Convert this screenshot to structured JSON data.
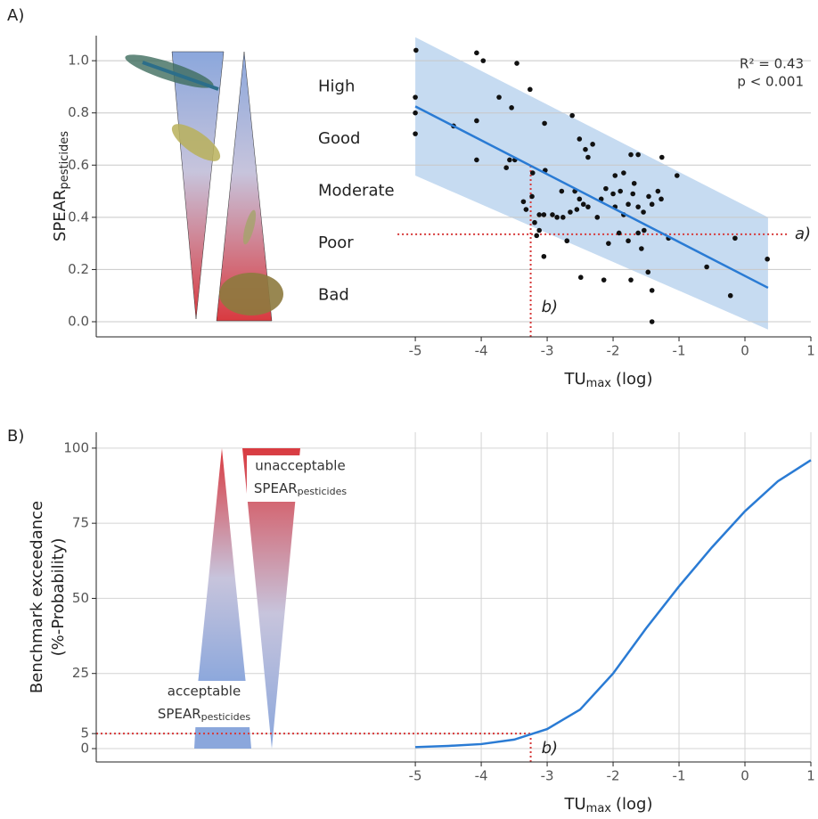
{
  "chart_data": [
    {
      "type": "scatter",
      "panel_label": "A)",
      "y_label": [
        "SPEAR",
        "pesticides"
      ],
      "x_label": [
        "TU",
        "max",
        "(log)"
      ],
      "xlim": [
        -9.84,
        1
      ],
      "ylim": [
        -0.058,
        1.096
      ],
      "xticks": [
        -5,
        -4,
        -3,
        -2,
        -1,
        0,
        1
      ],
      "yticks": [
        {
          "value": 0,
          "label": "0.0"
        },
        {
          "value": 0.2,
          "label": "0.2"
        },
        {
          "value": 0.4,
          "label": "0.4"
        },
        {
          "value": 0.6,
          "label": "0.6"
        },
        {
          "value": 0.8,
          "label": "0.8"
        },
        {
          "value": 1,
          "label": "1.0"
        }
      ],
      "grid": true,
      "color": "#111111",
      "quality_classes": [
        "High",
        "Good",
        "Moderate",
        "Poor",
        "Bad"
      ],
      "stats": [
        "R² = 0.43",
        "p < 0.001"
      ],
      "x": [
        -4.99,
        -5,
        -5,
        -5,
        -4.07,
        -3.97,
        -3.46,
        -3.26,
        -4.42,
        -4.07,
        -4.07,
        -3.73,
        -3.54,
        -3.62,
        -3.57,
        -3.49,
        -3.22,
        -3.04,
        -2.62,
        -2.51,
        -2.42,
        -2.31,
        -2.38,
        -3.03,
        -3.36,
        -3.23,
        -3.32,
        -3.19,
        -3.12,
        -3.05,
        -2.92,
        -2.85,
        -2.76,
        -2.65,
        -2.55,
        -2.78,
        -2.58,
        -2.51,
        -2.45,
        -2.38,
        -2.24,
        -2.11,
        -2.0,
        -1.89,
        -2.18,
        -1.97,
        -1.84,
        -1.77,
        -1.7,
        -1.68,
        -1.62,
        -1.54,
        -1.46,
        -1.41,
        -1.32,
        -1.27,
        -1.73,
        -1.62,
        -1.26,
        -1.03,
        -1.84,
        -1.97,
        -3.12,
        -3.16,
        -2.7,
        -3.05,
        -2.49,
        -2.07,
        -1.91,
        -1.77,
        -1.62,
        -1.57,
        -1.73,
        -1.47,
        -1.41,
        -1.53,
        -1.16,
        -2.14,
        -1.41,
        -0.58,
        -0.15,
        -0.22,
        0.34
      ],
      "values": [
        1.04,
        0.86,
        0.8,
        0.72,
        1.03,
        1.0,
        0.99,
        0.89,
        0.75,
        0.77,
        0.62,
        0.86,
        0.82,
        0.59,
        0.62,
        0.62,
        0.57,
        0.76,
        0.79,
        0.7,
        0.66,
        0.68,
        0.63,
        0.58,
        0.46,
        0.48,
        0.43,
        0.38,
        0.41,
        0.41,
        0.41,
        0.4,
        0.4,
        0.42,
        0.43,
        0.5,
        0.5,
        0.47,
        0.45,
        0.44,
        0.4,
        0.51,
        0.49,
        0.5,
        0.47,
        0.44,
        0.41,
        0.45,
        0.49,
        0.53,
        0.44,
        0.42,
        0.48,
        0.45,
        0.5,
        0.47,
        0.64,
        0.64,
        0.63,
        0.56,
        0.57,
        0.56,
        0.35,
        0.33,
        0.31,
        0.25,
        0.17,
        0.3,
        0.34,
        0.31,
        0.34,
        0.28,
        0.16,
        0.19,
        0.12,
        0.35,
        0.32,
        0.16,
        0.0,
        0.21,
        0.32,
        0.1,
        0.24
      ],
      "fit": {
        "x": [
          -5,
          0.35
        ],
        "values": [
          0.825,
          0.13
        ],
        "color": "#2a7bd4"
      },
      "band": {
        "x": [
          -5,
          0.35
        ],
        "upper": [
          1.09,
          0.4
        ],
        "lower": [
          0.56,
          -0.03
        ],
        "color": "#c6dbf1"
      },
      "ref_h": {
        "label": "a)",
        "y": 0.335,
        "color": "#d63a3a"
      },
      "ref_v": {
        "label": "b)",
        "x": -3.25,
        "y": 0.6,
        "color": "#d63a3a"
      }
    },
    {
      "type": "line",
      "panel_label": "B)",
      "y_label": [
        "Benchmark exceedance",
        "(%-Probability)"
      ],
      "x_label": [
        "TU",
        "max",
        "(log)"
      ],
      "xlim": [
        -9.84,
        1
      ],
      "ylim": [
        -4.45,
        105.3
      ],
      "xticks": [
        -5,
        -4,
        -3,
        -2,
        -1,
        0,
        1
      ],
      "yticks": [
        0,
        5,
        25,
        50,
        75,
        100
      ],
      "grid": true,
      "color": "#2a7bd4",
      "x": [
        -5,
        -4.5,
        -4,
        -3.5,
        -3,
        -2.5,
        -2,
        -1.5,
        -1,
        -0.5,
        0,
        0.5,
        1
      ],
      "values": [
        0.5,
        0.9,
        1.5,
        3,
        6.5,
        13,
        25,
        40,
        54,
        67,
        79,
        89,
        96
      ],
      "upper_label": [
        "unacceptable",
        "SPEAR",
        "pesticides"
      ],
      "lower_label": [
        "acceptable",
        "SPEAR",
        "pesticides"
      ],
      "ref_h": {
        "y": 5,
        "color": "#d63a3a"
      },
      "ref_v": {
        "label": "b)",
        "x": -3.25,
        "color": "#d63a3a"
      }
    }
  ]
}
